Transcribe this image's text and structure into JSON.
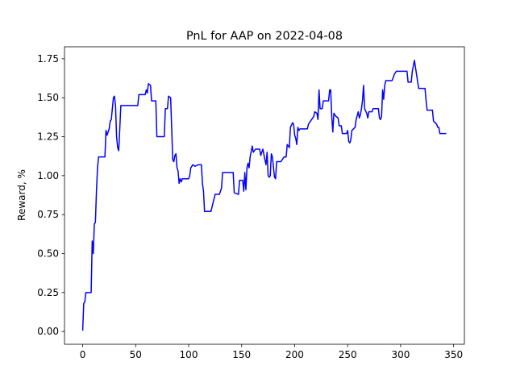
{
  "chart_data": {
    "type": "line",
    "title": "PnL for AAP on 2022-04-08",
    "y_label": "Reward, %",
    "color": "#0000ff",
    "x": [
      0,
      1,
      2,
      3,
      8,
      9,
      10,
      11,
      12,
      13,
      14,
      15,
      21,
      22,
      23,
      25,
      26,
      27,
      29,
      30,
      31,
      32,
      33,
      34,
      35,
      36,
      52,
      53,
      59,
      60,
      61,
      62,
      64,
      65,
      69,
      70,
      77,
      78,
      80,
      81,
      83,
      84,
      85,
      86,
      87,
      88,
      89,
      90,
      91,
      92,
      93,
      94,
      100,
      101,
      102,
      104,
      106,
      109,
      112,
      113,
      114,
      115,
      121,
      125,
      129,
      131,
      132,
      142,
      143,
      147,
      148,
      151,
      152,
      153,
      154,
      155,
      156,
      157,
      158,
      160,
      161,
      163,
      167,
      168,
      170,
      172,
      173,
      174,
      175,
      176,
      177,
      178,
      179,
      181,
      182,
      183,
      187,
      190,
      192,
      193,
      195,
      196,
      198,
      199,
      200,
      201,
      202,
      203,
      204,
      205,
      212,
      213,
      215,
      218,
      219,
      221,
      222,
      223,
      224,
      226,
      227,
      232,
      233,
      234,
      235,
      236,
      237,
      239,
      241,
      242,
      244,
      245,
      249,
      250,
      251,
      252,
      253,
      254,
      257,
      258,
      260,
      261,
      262,
      263,
      264,
      265,
      266,
      268,
      269,
      270,
      273,
      274,
      276,
      279,
      280,
      281,
      282,
      283,
      284,
      285,
      286,
      292,
      294,
      296,
      306,
      307,
      310,
      311,
      313,
      315,
      317,
      323,
      324,
      325,
      330,
      331,
      334,
      335,
      336,
      337,
      343
    ],
    "values": [
      0.005,
      0.18,
      0.19,
      0.25,
      0.25,
      0.58,
      0.5,
      0.69,
      0.7,
      0.9,
      1.05,
      1.12,
      1.12,
      1.29,
      1.26,
      1.3,
      1.35,
      1.36,
      1.5,
      1.51,
      1.45,
      1.25,
      1.18,
      1.16,
      1.3,
      1.45,
      1.45,
      1.52,
      1.52,
      1.55,
      1.53,
      1.59,
      1.58,
      1.48,
      1.48,
      1.25,
      1.25,
      1.43,
      1.43,
      1.51,
      1.5,
      1.3,
      1.1,
      1.09,
      1.13,
      1.14,
      1.05,
      1.03,
      0.95,
      0.98,
      0.96,
      0.98,
      0.98,
      1.0,
      1.05,
      1.07,
      1.06,
      1.07,
      1.07,
      0.95,
      0.9,
      0.77,
      0.77,
      0.88,
      0.88,
      0.92,
      1.02,
      1.02,
      0.89,
      0.88,
      0.97,
      0.97,
      0.9,
      1.02,
      0.91,
      1.05,
      1.08,
      1.05,
      1.12,
      1.19,
      1.15,
      1.17,
      1.17,
      1.13,
      1.17,
      1.1,
      1.07,
      1.15,
      1.0,
      0.99,
      1.0,
      1.14,
      1.12,
      0.99,
      0.98,
      1.09,
      1.09,
      1.12,
      1.12,
      1.2,
      1.18,
      1.31,
      1.34,
      1.33,
      1.26,
      1.24,
      1.2,
      1.31,
      1.29,
      1.3,
      1.3,
      1.33,
      1.35,
      1.38,
      1.41,
      1.4,
      1.36,
      1.55,
      1.43,
      1.43,
      1.48,
      1.48,
      1.55,
      1.55,
      1.38,
      1.28,
      1.4,
      1.38,
      1.37,
      1.32,
      1.32,
      1.27,
      1.27,
      1.29,
      1.22,
      1.21,
      1.23,
      1.29,
      1.31,
      1.36,
      1.41,
      1.37,
      1.39,
      1.43,
      1.48,
      1.58,
      1.43,
      1.4,
      1.37,
      1.41,
      1.41,
      1.43,
      1.43,
      1.43,
      1.37,
      1.36,
      1.38,
      1.55,
      1.49,
      1.58,
      1.61,
      1.61,
      1.65,
      1.67,
      1.67,
      1.6,
      1.6,
      1.67,
      1.74,
      1.65,
      1.56,
      1.56,
      1.48,
      1.42,
      1.42,
      1.35,
      1.33,
      1.31,
      1.31,
      1.27,
      1.27
    ],
    "xlim": [
      -17.15,
      360.15
    ],
    "xticks": [
      0,
      50,
      100,
      150,
      200,
      250,
      300,
      350
    ],
    "ylim": [
      -0.082,
      1.827
    ],
    "yticks": [
      {
        "value": 0,
        "label": "0.00"
      },
      {
        "value": 0.25,
        "label": "0.25"
      },
      {
        "value": 0.5,
        "label": "0.50"
      },
      {
        "value": 0.75,
        "label": "0.75"
      },
      {
        "value": 1,
        "label": "1.00"
      },
      {
        "value": 1.25,
        "label": "1.25"
      },
      {
        "value": 1.5,
        "label": "1.50"
      },
      {
        "value": 1.75,
        "label": "1.75"
      }
    ]
  }
}
